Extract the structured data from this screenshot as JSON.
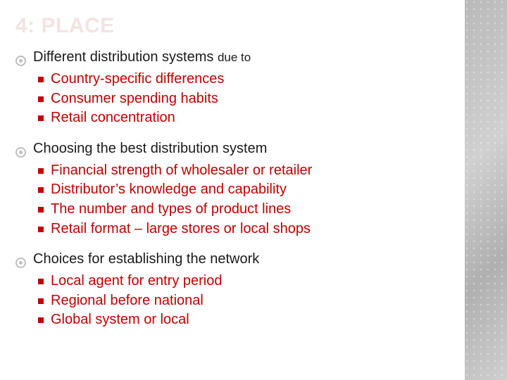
{
  "colors": {
    "title": "#f2e3e3",
    "top_bullet": "#bfbfbf",
    "top_text": "#1a1a1a",
    "sub_bullet": "#c00000",
    "sub_text": "#c00000",
    "background": "#ffffff"
  },
  "slide": {
    "title": "4: PLACE",
    "sections": [
      {
        "text_main": "Different distribution systems ",
        "text_tail": "due to",
        "items": [
          "Country-specific differences",
          "Consumer spending habits",
          "Retail concentration"
        ]
      },
      {
        "text_main": "Choosing the best distribution system",
        "text_tail": "",
        "items": [
          "Financial strength of wholesaler or retailer",
          "Distributor’s knowledge and capability",
          "The number and types of product lines",
          "Retail format – large stores or local shops"
        ]
      },
      {
        "text_main": "Choices for establishing the network",
        "text_tail": "",
        "items": [
          "Local agent for entry period",
          "Regional before national",
          "Global system or local"
        ]
      }
    ]
  }
}
